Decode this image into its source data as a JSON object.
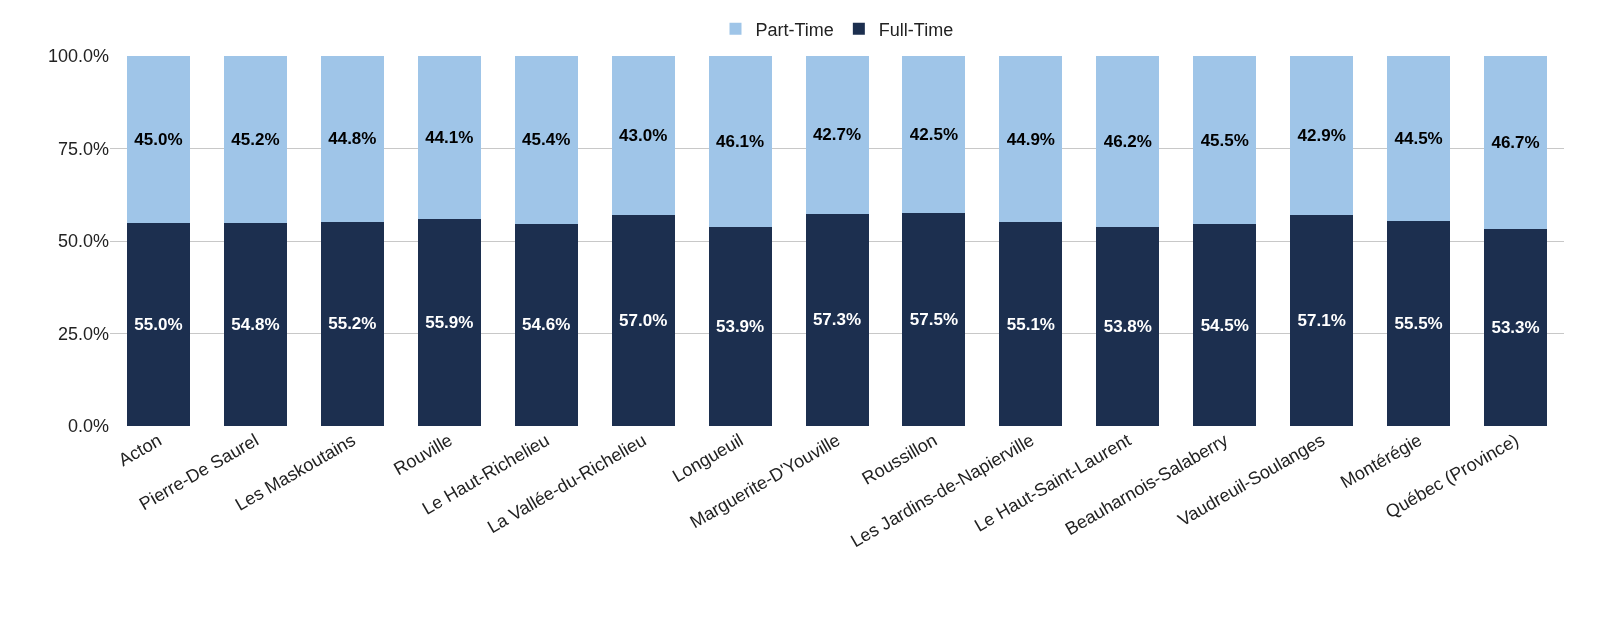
{
  "chart_data": {
    "type": "bar",
    "stacked": true,
    "categories": [
      "Acton",
      "Pierre-De Saurel",
      "Les Maskoutains",
      "Rouville",
      "Le Haut-Richelieu",
      "La Vallée-du-Richelieu",
      "Longueuil",
      "Marguerite-D'Youville",
      "Roussillon",
      "Les Jardins-de-Napierville",
      "Le Haut-Saint-Laurent",
      "Beauharnois-Salaberry",
      "Vaudreuil-Soulanges",
      "Montérégie",
      "Québec (Province)"
    ],
    "series": [
      {
        "name": "Full-Time",
        "color": "#1c2f4f",
        "values": [
          55.0,
          54.8,
          55.2,
          55.9,
          54.6,
          57.0,
          53.9,
          57.3,
          57.5,
          55.1,
          53.8,
          54.5,
          57.1,
          55.5,
          53.3
        ],
        "value_labels": [
          "55.0%",
          "54.8%",
          "55.2%",
          "55.9%",
          "54.6%",
          "57.0%",
          "53.9%",
          "57.3%",
          "57.5%",
          "55.1%",
          "53.8%",
          "54.5%",
          "57.1%",
          "55.5%",
          "53.3%"
        ]
      },
      {
        "name": "Part-Time",
        "color": "#9fc5e8",
        "values": [
          45.0,
          45.2,
          44.8,
          44.1,
          45.4,
          43.0,
          46.1,
          42.7,
          42.5,
          44.9,
          46.2,
          45.5,
          42.9,
          44.5,
          46.7
        ],
        "value_labels": [
          "45.0%",
          "45.2%",
          "44.8%",
          "44.1%",
          "45.4%",
          "43.0%",
          "46.1%",
          "42.7%",
          "42.5%",
          "44.9%",
          "46.2%",
          "45.5%",
          "42.9%",
          "44.5%",
          "46.7%"
        ]
      }
    ],
    "ylim": [
      0,
      100
    ],
    "yticks": [
      {
        "value": 0,
        "label": "0.0%"
      },
      {
        "value": 25,
        "label": "25.0%"
      },
      {
        "value": 50,
        "label": "50.0%"
      },
      {
        "value": 75,
        "label": "75.0%"
      },
      {
        "value": 100,
        "label": "100.0%"
      }
    ],
    "grid": "y",
    "legend": "top"
  }
}
